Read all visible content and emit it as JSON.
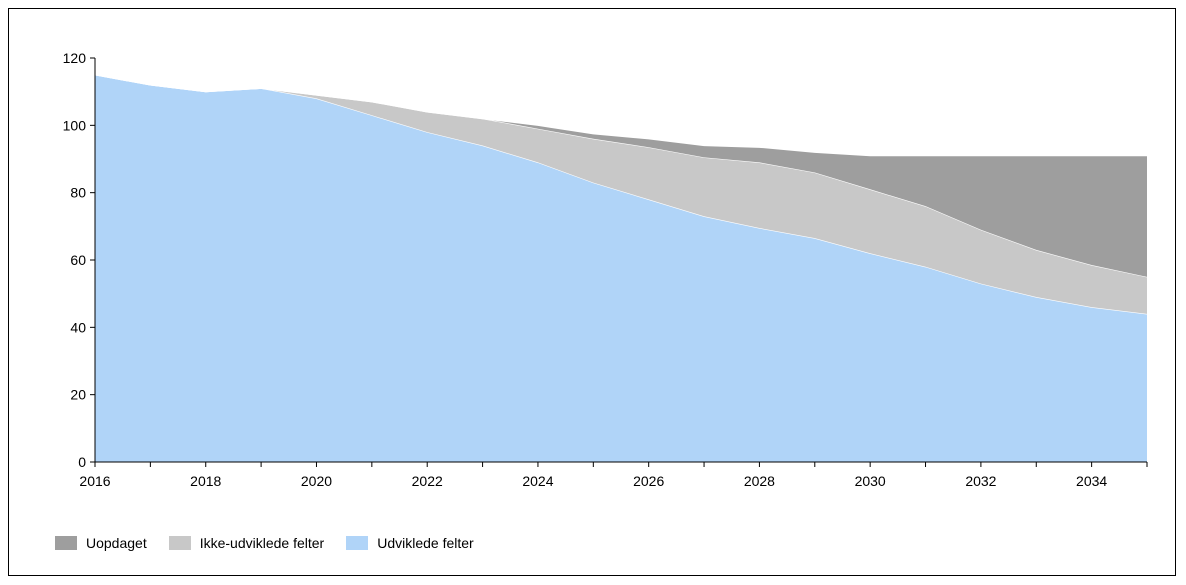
{
  "chart_data": {
    "type": "area",
    "stacked": true,
    "x": [
      2016,
      2017,
      2018,
      2019,
      2020,
      2021,
      2022,
      2023,
      2024,
      2025,
      2026,
      2027,
      2028,
      2029,
      2030,
      2031,
      2032,
      2033,
      2034,
      2035
    ],
    "series": [
      {
        "name": "Udviklede felter",
        "color": "#b0d4f8",
        "values": [
          115,
          112,
          110,
          111,
          108,
          103,
          98,
          94,
          89,
          83,
          78,
          73,
          69.5,
          66.5,
          62,
          58,
          53,
          49,
          46,
          44
        ]
      },
      {
        "name": "Ikke-udviklede felter",
        "color": "#c8c8c8",
        "values": [
          0,
          0,
          0,
          0,
          1,
          4,
          6,
          8,
          10,
          13,
          15.5,
          17.5,
          19.5,
          19.5,
          19,
          18,
          16,
          14,
          12.5,
          11
        ]
      },
      {
        "name": "Uopdaget",
        "color": "#9e9e9e",
        "values": [
          0,
          0,
          0,
          0,
          0,
          0,
          0,
          0,
          1,
          1.5,
          2.5,
          3.5,
          4.5,
          6,
          10,
          15,
          22,
          28,
          32.5,
          36
        ]
      }
    ],
    "ylim": [
      0,
      120
    ],
    "yticks": [
      0,
      20,
      40,
      60,
      80,
      100,
      120
    ],
    "xlim": [
      2016,
      2035
    ],
    "xtick_labels": [
      2016,
      2018,
      2020,
      2022,
      2024,
      2026,
      2028,
      2030,
      2032,
      2034
    ],
    "legend_position": "bottom-left",
    "legend_order": [
      "Uopdaget",
      "Ikke-udviklede felter",
      "Udviklede felter"
    ],
    "grid": false
  }
}
